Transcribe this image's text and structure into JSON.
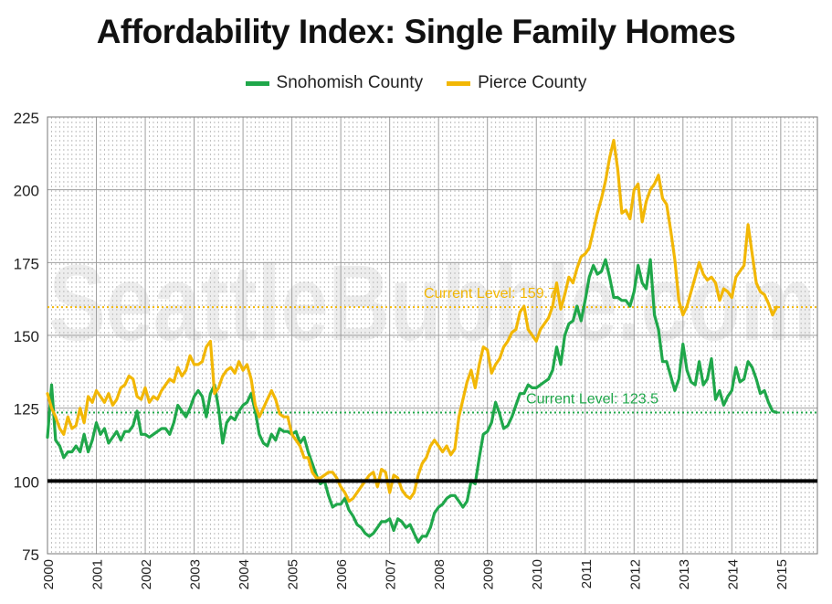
{
  "chart_data": {
    "type": "line",
    "title": "Affordability Index: Single Family Homes",
    "watermark": "SeattleBubble.com",
    "xlabel": "",
    "ylabel": "",
    "xlim": [
      2000.0,
      2015.75
    ],
    "ylim": [
      75,
      225
    ],
    "y_ticks": [
      75,
      100,
      125,
      150,
      175,
      200,
      225
    ],
    "x_ticks": [
      "2000",
      "2001",
      "2002",
      "2003",
      "2004",
      "2005",
      "2006",
      "2007",
      "2008",
      "2009",
      "2010",
      "2011",
      "2012",
      "2013",
      "2014",
      "2015"
    ],
    "grid": true,
    "legend_position": "top-center",
    "baseline": 100,
    "series": [
      {
        "name": "Snohomish County",
        "color": "#1fa74a",
        "x_start": 2000.0,
        "x_step": 0.08333,
        "values": [
          115,
          133,
          114,
          112,
          108,
          110,
          110,
          112,
          110,
          116,
          110,
          114,
          120,
          116,
          118,
          113,
          115,
          117,
          114,
          117,
          117,
          119,
          124,
          116,
          116,
          115,
          116,
          117,
          118,
          118,
          116,
          120,
          126,
          124,
          122,
          125,
          129,
          131,
          129,
          122,
          130,
          133,
          125,
          113,
          120,
          122,
          121,
          124,
          126,
          127,
          130,
          124,
          116,
          113,
          112,
          116,
          114,
          118,
          117,
          117,
          116,
          117,
          113,
          115,
          110,
          106,
          102,
          99,
          100,
          95,
          91,
          92,
          92,
          94,
          90,
          88,
          85,
          84,
          82,
          81,
          82,
          84,
          86,
          86,
          87,
          83,
          87,
          86,
          84,
          85,
          82,
          79,
          81,
          81,
          84,
          89,
          91,
          92,
          94,
          95,
          95,
          93,
          91,
          93,
          100,
          99,
          108,
          116,
          117,
          120,
          127,
          123,
          118,
          119,
          122,
          126,
          130,
          130,
          133,
          132,
          132,
          133,
          134,
          135,
          138,
          146,
          140,
          150,
          154,
          155,
          160,
          155,
          162,
          170,
          174,
          171,
          172,
          176,
          170,
          163,
          163,
          162,
          162,
          160,
          165,
          174,
          168,
          166,
          176,
          157,
          152,
          141,
          141,
          136,
          131,
          135,
          147,
          138,
          134,
          133,
          141,
          133,
          135,
          142,
          128,
          131,
          126,
          129,
          131,
          139,
          134,
          135,
          141,
          139,
          135,
          130,
          131,
          127,
          124,
          123.5
        ]
      },
      {
        "name": "Pierce County",
        "color": "#f2b705",
        "x_start": 2000.0,
        "x_step": 0.08333,
        "values": [
          130,
          125,
          122,
          118,
          116,
          122,
          118,
          119,
          125,
          120,
          129,
          127,
          131,
          129,
          127,
          130,
          126,
          128,
          132,
          133,
          136,
          135,
          129,
          128,
          132,
          127,
          129,
          128,
          131,
          133,
          135,
          134,
          139,
          136,
          138,
          143,
          140,
          140,
          141,
          146,
          148,
          130,
          132,
          136,
          138,
          139,
          137,
          141,
          138,
          140,
          135,
          126,
          122,
          125,
          128,
          131,
          128,
          123,
          122,
          122,
          116,
          114,
          112,
          108,
          108,
          103,
          101,
          101,
          102,
          103,
          103,
          101,
          98,
          96,
          93,
          94,
          96,
          98,
          100,
          102,
          103,
          98,
          104,
          103,
          96,
          102,
          101,
          97,
          95,
          94,
          96,
          102,
          106,
          108,
          112,
          114,
          112,
          110,
          112,
          109,
          111,
          122,
          128,
          134,
          138,
          132,
          140,
          146,
          145,
          137,
          140,
          142,
          146,
          148,
          151,
          152,
          158,
          160,
          152,
          150,
          148,
          152,
          154,
          156,
          160,
          168,
          159,
          164,
          170,
          168,
          173,
          177,
          178,
          180,
          186,
          192,
          197,
          203,
          211,
          217,
          207,
          192,
          193,
          190,
          200,
          202,
          189,
          196,
          200,
          202,
          205,
          197,
          195,
          186,
          176,
          162,
          157,
          160,
          165,
          170,
          175,
          171,
          169,
          170,
          168,
          162,
          166,
          165,
          163,
          170,
          172,
          174,
          188,
          178,
          168,
          165,
          164,
          161,
          157,
          159.7
        ]
      }
    ],
    "annotations": [
      {
        "text": "Current Level: 159.7",
        "value": 159.7,
        "color": "#f2b705"
      },
      {
        "text": "Current Level: 123.5",
        "value": 123.5,
        "color": "#1fa74a"
      }
    ]
  }
}
